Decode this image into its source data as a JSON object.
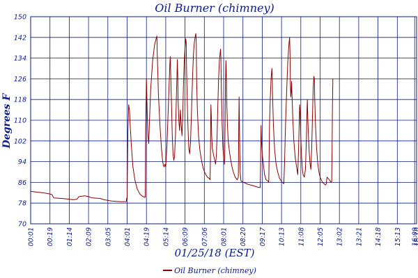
{
  "chart_data": {
    "type": "line",
    "title": "Oil Burner (chimney)",
    "xlabel": "01/25/18 (EST)",
    "ylabel": "Degrees F",
    "ylim": [
      70,
      150
    ],
    "yticks": [
      70,
      78,
      86,
      94,
      102,
      110,
      118,
      126,
      134,
      142,
      150
    ],
    "xlim": [
      0,
      1000
    ],
    "xticks": [
      {
        "x": 0,
        "label": "00:01"
      },
      {
        "x": 50,
        "label": "00:19"
      },
      {
        "x": 100,
        "label": "01:14"
      },
      {
        "x": 150,
        "label": "02:09"
      },
      {
        "x": 200,
        "label": "03:05"
      },
      {
        "x": 250,
        "label": "04:01"
      },
      {
        "x": 300,
        "label": "04:19"
      },
      {
        "x": 350,
        "label": "05:14"
      },
      {
        "x": 400,
        "label": "06:09"
      },
      {
        "x": 450,
        "label": "07:06"
      },
      {
        "x": 500,
        "label": "08:01"
      },
      {
        "x": 550,
        "label": "08:20"
      },
      {
        "x": 600,
        "label": "09:17"
      },
      {
        "x": 650,
        "label": "10:13"
      },
      {
        "x": 700,
        "label": "11:08"
      },
      {
        "x": 750,
        "label": "12:05"
      },
      {
        "x": 800,
        "label": "13:02"
      },
      {
        "x": 850,
        "label": "13:21"
      },
      {
        "x": 900,
        "label": "14:18"
      },
      {
        "x": 950,
        "label": "15:13"
      },
      {
        "x": 995,
        "label": "16:09"
      },
      {
        "x": 1000,
        "label": "16:10"
      }
    ],
    "grid": true,
    "legend": "bottom-center",
    "colors": {
      "series": "#8b0000",
      "text": "#0a1a8a",
      "grid": "#0a1a8a"
    },
    "series": [
      {
        "name": "Oil Burner (chimney)",
        "points": [
          [
            0,
            82.5
          ],
          [
            20,
            82.2
          ],
          [
            40,
            81.8
          ],
          [
            55,
            81.3
          ],
          [
            60,
            80
          ],
          [
            80,
            79.8
          ],
          [
            100,
            79.5
          ],
          [
            110,
            79.3
          ],
          [
            120,
            79.5
          ],
          [
            125,
            80.5
          ],
          [
            140,
            80.8
          ],
          [
            150,
            80.5
          ],
          [
            160,
            80
          ],
          [
            180,
            79.8
          ],
          [
            190,
            79.3
          ],
          [
            210,
            78.8
          ],
          [
            235,
            78.5
          ],
          [
            248,
            78.6
          ],
          [
            249,
            80
          ],
          [
            250,
            79.5
          ],
          [
            252,
            106
          ],
          [
            254,
            116
          ],
          [
            256,
            114
          ],
          [
            258,
            108
          ],
          [
            261,
            100
          ],
          [
            265,
            92
          ],
          [
            270,
            87
          ],
          [
            276,
            83.5
          ],
          [
            283,
            81.5
          ],
          [
            290,
            80.6
          ],
          [
            297,
            80.2
          ],
          [
            298,
            107
          ],
          [
            300,
            126
          ],
          [
            302,
            113
          ],
          [
            304,
            104
          ],
          [
            306,
            101
          ],
          [
            308,
            110
          ],
          [
            311,
            122
          ],
          [
            316,
            133
          ],
          [
            321,
            139
          ],
          [
            325,
            141.5
          ],
          [
            327,
            142.5
          ],
          [
            328,
            136
          ],
          [
            331,
            120
          ],
          [
            335,
            108
          ],
          [
            339,
            99
          ],
          [
            342,
            94
          ],
          [
            344,
            92.5
          ],
          [
            346,
            92
          ],
          [
            348,
            93
          ],
          [
            350,
            92
          ],
          [
            353,
            100
          ],
          [
            356,
            112
          ],
          [
            359,
            125
          ],
          [
            361,
            133
          ],
          [
            362,
            134.5
          ],
          [
            363,
            127
          ],
          [
            365,
            116
          ],
          [
            367,
            104
          ],
          [
            369,
            97
          ],
          [
            371,
            94.5
          ],
          [
            373,
            96
          ],
          [
            375,
            104
          ],
          [
            377,
            116
          ],
          [
            379,
            127
          ],
          [
            380,
            133.5
          ],
          [
            381,
            128
          ],
          [
            382,
            118
          ],
          [
            384,
            110
          ],
          [
            386,
            106
          ],
          [
            388,
            114
          ],
          [
            390,
            108
          ],
          [
            392,
            104
          ],
          [
            394,
            112
          ],
          [
            396,
            124
          ],
          [
            398,
            133
          ],
          [
            400,
            138
          ],
          [
            402,
            141.5
          ],
          [
            403,
            140
          ],
          [
            404,
            130
          ],
          [
            406,
            116
          ],
          [
            408,
            106
          ],
          [
            410,
            99
          ],
          [
            412,
            97
          ],
          [
            414,
            101
          ],
          [
            416,
            110
          ],
          [
            418,
            120
          ],
          [
            420,
            129
          ],
          [
            422,
            136
          ],
          [
            424,
            140
          ],
          [
            426,
            142
          ],
          [
            428,
            143.5
          ],
          [
            429,
            140
          ],
          [
            430,
            126
          ],
          [
            432,
            114
          ],
          [
            435,
            104
          ],
          [
            438,
            99
          ],
          [
            441,
            96
          ],
          [
            444,
            93.5
          ],
          [
            447,
            91.5
          ],
          [
            452,
            89.5
          ],
          [
            458,
            88
          ],
          [
            463,
            87.5
          ],
          [
            465,
            87
          ],
          [
            466,
            100
          ],
          [
            467,
            116
          ],
          [
            468,
            112
          ],
          [
            469,
            104
          ],
          [
            471,
            99
          ],
          [
            474,
            96.5
          ],
          [
            477,
            94.5
          ],
          [
            479,
            93
          ],
          [
            481,
            96
          ],
          [
            483,
            104
          ],
          [
            485,
            116
          ],
          [
            487,
            126
          ],
          [
            489,
            133
          ],
          [
            491,
            136
          ],
          [
            492,
            137.5
          ],
          [
            493,
            134
          ],
          [
            494,
            122
          ],
          [
            496,
            109
          ],
          [
            498,
            100
          ],
          [
            500,
            95
          ],
          [
            502,
            93
          ],
          [
            503,
            98
          ],
          [
            504,
            112
          ],
          [
            505,
            126
          ],
          [
            506,
            133
          ],
          [
            507,
            128
          ],
          [
            508,
            118
          ],
          [
            510,
            108
          ],
          [
            512,
            102
          ],
          [
            515,
            98
          ],
          [
            518,
            95
          ],
          [
            521,
            92.5
          ],
          [
            525,
            90
          ],
          [
            530,
            88
          ],
          [
            535,
            87
          ],
          [
            538,
            88
          ],
          [
            539,
            104
          ],
          [
            540,
            119
          ],
          [
            541,
            108
          ],
          [
            542,
            96
          ],
          [
            543,
            90
          ],
          [
            545,
            86.5
          ],
          [
            552,
            86
          ],
          [
            562,
            85.3
          ],
          [
            575,
            84.8
          ],
          [
            587,
            84.2
          ],
          [
            595,
            84
          ],
          [
            596,
            97
          ],
          [
            597,
            108
          ],
          [
            598,
            102
          ],
          [
            600,
            97
          ],
          [
            603,
            93
          ],
          [
            606,
            89
          ],
          [
            610,
            87
          ],
          [
            615,
            86.5
          ],
          [
            617,
            86
          ],
          [
            618,
            98
          ],
          [
            619,
            109
          ],
          [
            621,
            119
          ],
          [
            623,
            126
          ],
          [
            625,
            130
          ],
          [
            626,
            127
          ],
          [
            627,
            118
          ],
          [
            629,
            108
          ],
          [
            632,
            99
          ],
          [
            636,
            93
          ],
          [
            640,
            90
          ],
          [
            645,
            87.5
          ],
          [
            652,
            86
          ],
          [
            656,
            85.5
          ],
          [
            658,
            94
          ],
          [
            660,
            106
          ],
          [
            663,
            120
          ],
          [
            666,
            132
          ],
          [
            669,
            139
          ],
          [
            671,
            142
          ],
          [
            672,
            136
          ],
          [
            673,
            124
          ],
          [
            674,
            119
          ],
          [
            675,
            121
          ],
          [
            676,
            125
          ],
          [
            677,
            120
          ],
          [
            679,
            111
          ],
          [
            682,
            102
          ],
          [
            686,
            95
          ],
          [
            690,
            91
          ],
          [
            692,
            89
          ],
          [
            694,
            98
          ],
          [
            696,
            110
          ],
          [
            697,
            116
          ],
          [
            698,
            114
          ],
          [
            700,
            103
          ],
          [
            702,
            96
          ],
          [
            704,
            91
          ],
          [
            706,
            89
          ],
          [
            709,
            88
          ],
          [
            712,
            91
          ],
          [
            714,
            101
          ],
          [
            716,
            114
          ],
          [
            717,
            118
          ],
          [
            718,
            111
          ],
          [
            720,
            103
          ],
          [
            722,
            97
          ],
          [
            724,
            93
          ],
          [
            726,
            91
          ],
          [
            728,
            98
          ],
          [
            730,
            110
          ],
          [
            732,
            122
          ],
          [
            734,
            127
          ],
          [
            735,
            126
          ],
          [
            736,
            119
          ],
          [
            738,
            108
          ],
          [
            741,
            99
          ],
          [
            744,
            93
          ],
          [
            747,
            90
          ],
          [
            750,
            88
          ],
          [
            753,
            87
          ],
          [
            756,
            86
          ],
          [
            760,
            85.5
          ],
          [
            764,
            85
          ],
          [
            766,
            85.5
          ],
          [
            767,
            87
          ],
          [
            768,
            88
          ],
          [
            771,
            87.5
          ],
          [
            774,
            87
          ],
          [
            776,
            86.5
          ],
          [
            779,
            86
          ],
          [
            780,
            86
          ],
          [
            781,
            100
          ],
          [
            782,
            115
          ],
          [
            783,
            126
          ]
        ]
      }
    ]
  }
}
